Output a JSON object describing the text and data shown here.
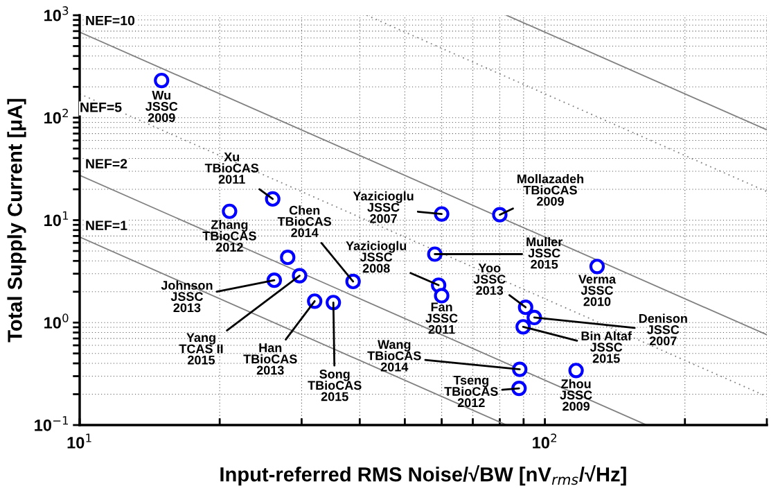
{
  "chart_data": {
    "type": "scatter",
    "xlabel": "Input-referred RMS Noise/√BW [nV$_{rms}$/√Hz]",
    "ylabel": "Total Supply Current [μA]",
    "log": "xy",
    "grid": true,
    "xlim": [
      10,
      300
    ],
    "ylim": [
      0.1,
      1000
    ],
    "xticks": [
      {
        "value": 10,
        "label": "10$^{1}$"
      },
      {
        "value": 20,
        "label": null
      },
      {
        "value": 30,
        "label": null
      },
      {
        "value": 40,
        "label": null
      },
      {
        "value": 50,
        "label": null
      },
      {
        "value": 60,
        "label": null
      },
      {
        "value": 70,
        "label": null
      },
      {
        "value": 80,
        "label": null
      },
      {
        "value": 90,
        "label": null
      },
      {
        "value": 100,
        "label": "10$^{2}$"
      },
      {
        "value": 200,
        "label": null
      },
      {
        "value": 300,
        "label": null
      }
    ],
    "yticks": [
      {
        "value": 0.1,
        "label": "10$^{−1}$"
      },
      {
        "value": 0.2,
        "label": null
      },
      {
        "value": 0.3,
        "label": null
      },
      {
        "value": 0.4,
        "label": null
      },
      {
        "value": 0.5,
        "label": null
      },
      {
        "value": 0.6,
        "label": null
      },
      {
        "value": 0.7,
        "label": null
      },
      {
        "value": 0.8,
        "label": null
      },
      {
        "value": 0.9,
        "label": null
      },
      {
        "value": 1,
        "label": "10$^{0}$"
      },
      {
        "value": 2,
        "label": null
      },
      {
        "value": 3,
        "label": null
      },
      {
        "value": 4,
        "label": null
      },
      {
        "value": 5,
        "label": null
      },
      {
        "value": 6,
        "label": null
      },
      {
        "value": 7,
        "label": null
      },
      {
        "value": 8,
        "label": null
      },
      {
        "value": 9,
        "label": null
      },
      {
        "value": 10,
        "label": "10$^{1}$"
      },
      {
        "value": 20,
        "label": null
      },
      {
        "value": 30,
        "label": null
      },
      {
        "value": 40,
        "label": null
      },
      {
        "value": 50,
        "label": null
      },
      {
        "value": 60,
        "label": null
      },
      {
        "value": 70,
        "label": null
      },
      {
        "value": 80,
        "label": null
      },
      {
        "value": 90,
        "label": null
      },
      {
        "value": 100,
        "label": "10$^{2}$"
      },
      {
        "value": 200,
        "label": null
      },
      {
        "value": 300,
        "label": null
      },
      {
        "value": 400,
        "label": null
      },
      {
        "value": 500,
        "label": null
      },
      {
        "value": 600,
        "label": null
      },
      {
        "value": 700,
        "label": null
      },
      {
        "value": 800,
        "label": null
      },
      {
        "value": 900,
        "label": null
      },
      {
        "value": 1000,
        "label": "10$^{3}$"
      }
    ],
    "series": [
      {
        "type": "line",
        "color": "#808080",
        "line_style": "solid",
        "x": [
          10,
          82.7
        ],
        "values": [
          6.84,
          0.1
        ]
      },
      {
        "type": "line",
        "color": "#808080",
        "line_style": "solid",
        "x": [
          10,
          165.5
        ],
        "values": [
          27.4,
          0.1
        ]
      },
      {
        "type": "line",
        "color": "#808080",
        "line_style": "dotted",
        "x": [
          10,
          300
        ],
        "values": [
          171,
          0.19
        ]
      },
      {
        "type": "line",
        "color": "#808080",
        "line_style": "solid",
        "x": [
          10,
          300
        ],
        "values": [
          684,
          0.76
        ]
      },
      {
        "type": "line",
        "color": "#808080",
        "line_style": "dotted",
        "x": [
          41.4,
          300
        ],
        "values": [
          1000,
          19
        ]
      },
      {
        "type": "line",
        "color": "#808080",
        "line_style": "solid",
        "x": [
          82.7,
          300
        ],
        "values": [
          1000,
          76
        ]
      },
      {
        "color": "#0000ff",
        "marker": "circle",
        "x": [
          15,
          26,
          21,
          38.7,
          60,
          80,
          58,
          59.1,
          60,
          26.2,
          29.7,
          28,
          32,
          35.1,
          88.3,
          88,
          116.7,
          90.9,
          94.9,
          89.8,
          129.5
        ],
        "values": [
          231,
          16.1,
          12.2,
          2.52,
          11.5,
          11.3,
          4.66,
          2.32,
          1.83,
          2.59,
          2.87,
          4.33,
          1.62,
          1.57,
          0.35,
          0.228,
          0.341,
          1.41,
          1.12,
          0.91,
          3.53
        ]
      }
    ],
    "annotations": [
      {
        "text": "NEF=10",
        "x": 10,
        "y": 684
      },
      {
        "text": "NEF=5",
        "x": 10,
        "y": 171
      },
      {
        "text": "NEF=2",
        "x": 10,
        "y": 27.4
      },
      {
        "text": "NEF=1",
        "x": 10,
        "y": 6.84
      },
      {
        "text": "Wu\nJSSC\n2009",
        "x": 15,
        "y": 231
      },
      {
        "text": "Xu\nTBioCAS\n2011",
        "x": 26,
        "y": 16.1
      },
      {
        "text": "Zhang\nTBioCAS\n2012",
        "x": 21,
        "y": 12.2
      },
      {
        "text": "Chen\nTBioCAS\n2014",
        "x": 38.7,
        "y": 2.52
      },
      {
        "text": "Yazicioglu\nJSSC\n2007",
        "x": 60,
        "y": 11.5
      },
      {
        "text": "Mollazadeh\nTBioCAS\n2009",
        "x": 80,
        "y": 11.3
      },
      {
        "text": "Muller\nJSSC\n2015",
        "x": 58,
        "y": 4.66
      },
      {
        "text": "Yazicioglu\nJSSC\n2008",
        "x": 59.1,
        "y": 2.32
      },
      {
        "text": "Fan\nJSSC\n2011",
        "x": 60,
        "y": 1.83
      },
      {
        "text": "Johnson\nJSSC\n2013",
        "x": 26.2,
        "y": 2.59
      },
      {
        "text": "Yang\nTCAS II\n2015",
        "x": 29.7,
        "y": 2.87
      },
      {
        "text": "Wang\nTBioCAS\n2014",
        "x": 88.3,
        "y": 0.35
      },
      {
        "text": "Han\nTBioCAS\n2013",
        "x": 32,
        "y": 1.62
      },
      {
        "text": "Song\nTBioCAS\n2015",
        "x": 35.1,
        "y": 1.57
      },
      {
        "text": "Tseng\nTBioCAS\n2012",
        "x": 88,
        "y": 0.228
      },
      {
        "text": "Zhou\nJSSC\n2009",
        "x": 116.7,
        "y": 0.341
      },
      {
        "text": "Yoo\nJSSC\n2013",
        "x": 90.9,
        "y": 1.41
      },
      {
        "text": "Denison\nJSSC\n2007",
        "x": 94.9,
        "y": 1.12
      },
      {
        "text": "Bin Altaf\nJSSC\n2015",
        "x": 89.8,
        "y": 0.91
      },
      {
        "text": "Verma\nJSSC\n2010",
        "x": 129.5,
        "y": 3.53
      }
    ]
  }
}
